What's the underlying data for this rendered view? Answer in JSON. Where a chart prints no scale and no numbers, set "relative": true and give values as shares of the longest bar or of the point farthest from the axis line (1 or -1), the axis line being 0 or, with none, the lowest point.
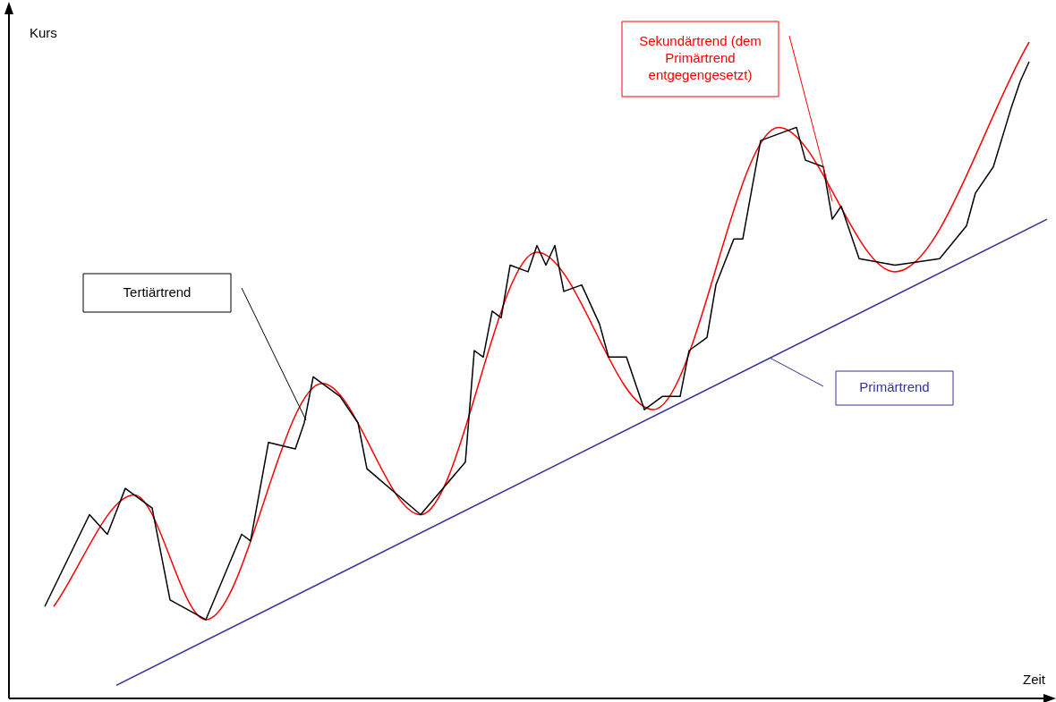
{
  "chart_data": {
    "type": "line",
    "relative": true,
    "xlabel": "Zeit",
    "ylabel": "Kurs",
    "legend": false,
    "marker": "none",
    "line_style": "solid",
    "categories": [
      null,
      null,
      null,
      null,
      null,
      null,
      null,
      null,
      null,
      null,
      null,
      null,
      null,
      null,
      null,
      null,
      null,
      null,
      null,
      null,
      null,
      null,
      null,
      null,
      null,
      null,
      null,
      null,
      null,
      null,
      null,
      null,
      null,
      null,
      null,
      null,
      null,
      null,
      null,
      null,
      null,
      null,
      null,
      null,
      null,
      null,
      null,
      null,
      null,
      null,
      null,
      null,
      null,
      null,
      null,
      null,
      null,
      null,
      null,
      null,
      null,
      null,
      null,
      null,
      null,
      null,
      null,
      null,
      null,
      null,
      null,
      null,
      null,
      null,
      null,
      null,
      null,
      null,
      null,
      null,
      null,
      null,
      null,
      null,
      null,
      null,
      null,
      null,
      null,
      null,
      null,
      null,
      null,
      null,
      null,
      null,
      null,
      null,
      null,
      null,
      null,
      null,
      null,
      null,
      null,
      null,
      null,
      null,
      null,
      null,
      null,
      null,
      null,
      null,
      null,
      null,
      null
    ],
    "series": [
      {
        "name": "Tertiärtrend",
        "color": "#000000",
        "values": [
          null,
          null,
          null,
          null,
          0.14,
          null,
          null,
          null,
          null,
          0.28,
          null,
          0.25,
          null,
          0.32,
          null,
          null,
          0.29,
          null,
          0.15,
          null,
          null,
          null,
          0.12,
          null,
          null,
          null,
          0.25,
          0.24,
          null,
          0.39,
          null,
          null,
          0.38,
          0.42,
          0.49,
          null,
          null,
          0.46,
          null,
          0.42,
          0.35,
          null,
          null,
          null,
          null,
          null,
          0.28,
          null,
          null,
          null,
          null,
          0.36,
          0.53,
          0.52,
          0.59,
          0.58,
          0.66,
          null,
          0.65,
          0.69,
          0.66,
          0.69,
          0.62,
          null,
          0.63,
          null,
          0.57,
          0.52,
          null,
          0.52,
          null,
          0.44,
          null,
          0.46,
          null,
          0.46,
          0.53,
          null,
          0.55,
          0.63,
          null,
          0.7,
          0.7,
          null,
          0.85,
          null,
          null,
          null,
          0.87,
          0.82,
          null,
          0.81,
          0.73,
          0.75,
          null,
          0.67,
          null,
          null,
          null,
          0.66,
          null,
          null,
          null,
          null,
          0.67,
          null,
          null,
          0.72,
          0.77,
          null,
          0.81,
          null,
          0.9,
          0.94,
          0.97,
          null,
          null
        ]
      },
      {
        "name": "Sekundärtrend (dem Primärtrend entgegengesetzt)",
        "color": "#ff0000",
        "values": [
          null,
          null,
          null,
          null,
          null,
          0.14,
          null,
          null,
          null,
          null,
          null,
          null,
          null,
          null,
          0.31,
          null,
          null,
          null,
          null,
          null,
          null,
          null,
          0.12,
          null,
          null,
          null,
          null,
          null,
          null,
          null,
          null,
          null,
          null,
          null,
          null,
          0.48,
          null,
          null,
          null,
          null,
          null,
          null,
          null,
          null,
          null,
          null,
          0.28,
          null,
          null,
          null,
          null,
          null,
          null,
          null,
          null,
          null,
          null,
          null,
          null,
          0.68,
          null,
          null,
          null,
          null,
          null,
          null,
          null,
          null,
          null,
          null,
          null,
          null,
          0.44,
          null,
          null,
          null,
          null,
          null,
          null,
          null,
          null,
          null,
          null,
          null,
          null,
          null,
          0.87,
          null,
          null,
          null,
          null,
          null,
          null,
          null,
          null,
          null,
          null,
          null,
          null,
          0.65,
          null,
          null,
          null,
          null,
          null,
          null,
          null,
          null,
          null,
          null,
          null,
          null,
          null,
          null,
          1.0,
          null,
          null
        ]
      },
      {
        "name": "Primärtrend",
        "color": "#333399",
        "values": [
          null,
          null,
          null,
          null,
          null,
          null,
          null,
          null,
          null,
          null,
          null,
          null,
          0.02,
          null,
          null,
          null,
          null,
          null,
          null,
          null,
          null,
          null,
          null,
          null,
          null,
          null,
          null,
          null,
          null,
          null,
          null,
          null,
          null,
          null,
          null,
          null,
          null,
          null,
          null,
          null,
          null,
          null,
          null,
          null,
          null,
          null,
          null,
          null,
          null,
          null,
          null,
          null,
          null,
          null,
          null,
          null,
          null,
          null,
          null,
          null,
          null,
          null,
          null,
          null,
          null,
          null,
          null,
          null,
          null,
          null,
          null,
          null,
          null,
          null,
          null,
          null,
          null,
          null,
          null,
          null,
          null,
          null,
          null,
          null,
          null,
          null,
          null,
          null,
          null,
          null,
          null,
          null,
          null,
          null,
          null,
          null,
          null,
          null,
          null,
          null,
          null,
          null,
          null,
          null,
          null,
          null,
          null,
          null,
          null,
          null,
          null,
          null,
          null,
          null,
          null,
          null,
          0.73
        ]
      }
    ]
  }
}
